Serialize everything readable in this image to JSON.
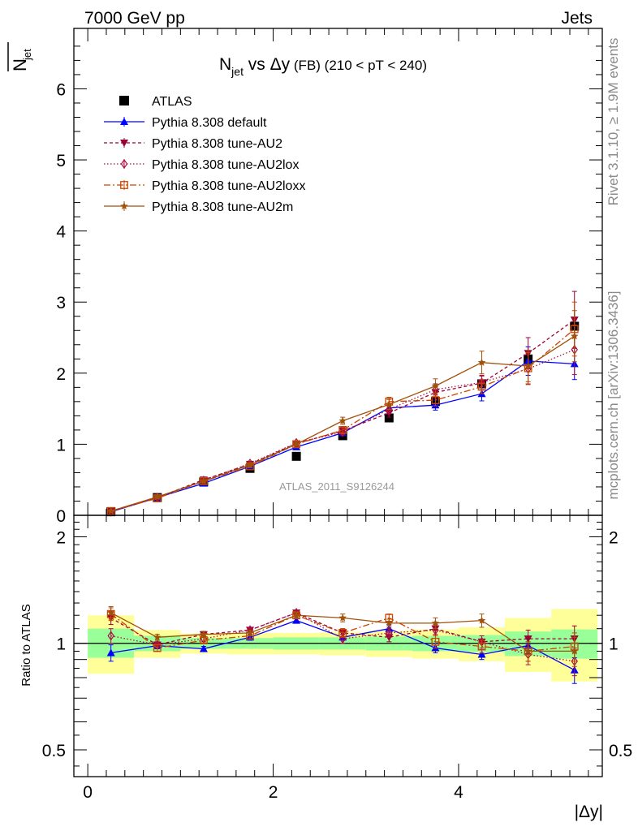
{
  "header": {
    "left": "7000 GeV pp",
    "right": "Jets"
  },
  "side_text": {
    "rivet": "Rivet 3.1.10, ≥ 1.9M events",
    "mcplots": "mcplots.cern.ch [arXiv:1306.3436]"
  },
  "chart_data": [
    {
      "type": "scatter",
      "title": {
        "n": "N",
        "sub": "jet",
        "vs": " vs ",
        "dy": "Δy",
        "fb": " (FB) ",
        "range": "(210 < pT < 240)"
      },
      "ylabel": {
        "n": "N",
        "sub": "jet"
      },
      "watermark": "ATLAS_2011_S9126244",
      "xlim": [
        -0.15,
        5.55
      ],
      "ylim": [
        0,
        6.85
      ],
      "yticks": [
        0,
        1,
        2,
        3,
        4,
        5,
        6
      ],
      "x": [
        0.25,
        0.75,
        1.25,
        1.75,
        2.25,
        2.75,
        3.25,
        3.75,
        4.25,
        4.75,
        5.25
      ],
      "series": [
        {
          "name": "ATLAS",
          "color": "#000000",
          "marker": "square",
          "dash": "",
          "line": false,
          "values": [
            0.05,
            0.25,
            0.47,
            0.66,
            0.83,
            1.12,
            1.37,
            1.6,
            1.85,
            2.2,
            2.66
          ],
          "errors": [
            0.005,
            0.02,
            0.03,
            0.03,
            0.04,
            0.05,
            0.06,
            0.08,
            0.1,
            0.1,
            0.2
          ]
        },
        {
          "name": "Pythia 8.308 default",
          "color": "#0000ff",
          "marker": "triangle-up",
          "dash": "",
          "line": true,
          "values": [
            0.05,
            0.25,
            0.45,
            0.69,
            0.96,
            1.16,
            1.51,
            1.55,
            1.71,
            2.17,
            2.13
          ],
          "errors": [
            0.005,
            0.01,
            0.015,
            0.02,
            0.03,
            0.04,
            0.06,
            0.07,
            0.1,
            0.2,
            0.22
          ]
        },
        {
          "name": "Pythia 8.308 tune-AU2",
          "color": "#990033",
          "marker": "triangle-down",
          "dash": "4,3",
          "line": true,
          "values": [
            0.06,
            0.25,
            0.5,
            0.72,
            1.01,
            1.19,
            1.44,
            1.73,
            1.86,
            2.28,
            2.75
          ],
          "errors": [
            0.005,
            0.01,
            0.02,
            0.02,
            0.03,
            0.04,
            0.06,
            0.08,
            0.1,
            0.22,
            0.4
          ]
        },
        {
          "name": "Pythia 8.308 tune-AU2lox",
          "color": "#aa1144",
          "marker": "diamond",
          "dash": "1.5,2.5",
          "line": true,
          "values": [
            0.05,
            0.25,
            0.49,
            0.73,
            1.02,
            1.17,
            1.49,
            1.77,
            1.87,
            2.06,
            2.33
          ],
          "errors": [
            0.005,
            0.01,
            0.02,
            0.02,
            0.03,
            0.04,
            0.06,
            0.08,
            0.1,
            0.22,
            0.35
          ]
        },
        {
          "name": "Pythia 8.308 tune-AU2loxx",
          "color": "#cc4400",
          "marker": "square-open",
          "dash": "8,3,2,3",
          "line": true,
          "values": [
            0.06,
            0.24,
            0.48,
            0.69,
            1.0,
            1.2,
            1.6,
            1.62,
            1.81,
            2.07,
            2.62
          ],
          "errors": [
            0.005,
            0.01,
            0.02,
            0.02,
            0.03,
            0.04,
            0.06,
            0.08,
            0.1,
            0.22,
            0.38
          ]
        },
        {
          "name": "Pythia 8.308 tune-AU2m",
          "color": "#a0520a",
          "marker": "star",
          "dash": "",
          "line": true,
          "values": [
            0.06,
            0.26,
            0.48,
            0.71,
            1.0,
            1.33,
            1.56,
            1.82,
            2.15,
            2.1,
            2.52
          ],
          "errors": [
            0.005,
            0.01,
            0.02,
            0.02,
            0.03,
            0.05,
            0.07,
            0.1,
            0.16,
            0.22,
            0.36
          ]
        }
      ]
    },
    {
      "type": "scatter",
      "ylabel": "Ratio to ATLAS",
      "xlabel": "|Δy|",
      "xlim": [
        -0.15,
        5.55
      ],
      "ylim": [
        0.42,
        2.3
      ],
      "log_y": true,
      "yticks": [
        0.5,
        1,
        2
      ],
      "xticks": [
        0,
        2,
        4
      ],
      "x": [
        0.25,
        0.75,
        1.25,
        1.75,
        2.25,
        2.75,
        3.25,
        3.75,
        4.25,
        4.75,
        5.25
      ],
      "bands": {
        "inner_color": "#99ff99",
        "outer_color": "#ffff99",
        "inner": [
          [
            0.91,
            1.1
          ],
          [
            0.95,
            1.05
          ],
          [
            0.965,
            1.035
          ],
          [
            0.965,
            1.035
          ],
          [
            0.96,
            1.04
          ],
          [
            0.96,
            1.04
          ],
          [
            0.955,
            1.045
          ],
          [
            0.95,
            1.05
          ],
          [
            0.945,
            1.055
          ],
          [
            0.92,
            1.08
          ],
          [
            0.905,
            1.095
          ]
        ],
        "outer": [
          [
            0.82,
            1.2
          ],
          [
            0.91,
            1.09
          ],
          [
            0.935,
            1.065
          ],
          [
            0.93,
            1.07
          ],
          [
            0.93,
            1.07
          ],
          [
            0.925,
            1.075
          ],
          [
            0.915,
            1.085
          ],
          [
            0.905,
            1.095
          ],
          [
            0.89,
            1.11
          ],
          [
            0.83,
            1.18
          ],
          [
            0.78,
            1.25
          ]
        ]
      },
      "series": [
        {
          "name": "Pythia 8.308 default",
          "values": [
            0.94,
            0.985,
            0.965,
            1.04,
            1.16,
            1.04,
            1.1,
            0.97,
            0.93,
            0.985,
            0.84
          ],
          "errors": [
            0.05,
            0.02,
            0.015,
            0.02,
            0.02,
            0.02,
            0.03,
            0.03,
            0.03,
            0.05,
            0.07
          ]
        },
        {
          "name": "Pythia 8.308 tune-AU2",
          "values": [
            1.18,
            0.99,
            1.06,
            1.09,
            1.22,
            1.07,
            1.04,
            1.1,
            1.01,
            1.03,
            1.03
          ],
          "errors": [
            0.05,
            0.02,
            0.02,
            0.02,
            0.02,
            0.03,
            0.03,
            0.04,
            0.04,
            0.06,
            0.09
          ]
        },
        {
          "name": "Pythia 8.308 tune-AU2lox",
          "values": [
            1.05,
            0.99,
            1.03,
            1.09,
            1.22,
            1.03,
            1.07,
            1.09,
            1.01,
            0.93,
            0.89
          ],
          "errors": [
            0.05,
            0.02,
            0.02,
            0.02,
            0.02,
            0.03,
            0.03,
            0.04,
            0.04,
            0.06,
            0.08
          ]
        },
        {
          "name": "Pythia 8.308 tune-AU2loxx",
          "values": [
            1.21,
            0.97,
            1.02,
            1.05,
            1.2,
            1.07,
            1.18,
            1.01,
            0.98,
            0.95,
            0.98
          ],
          "errors": [
            0.05,
            0.02,
            0.02,
            0.02,
            0.02,
            0.03,
            0.03,
            0.04,
            0.04,
            0.06,
            0.09
          ]
        },
        {
          "name": "Pythia 8.308 tune-AU2m",
          "values": [
            1.22,
            1.04,
            1.06,
            1.07,
            1.2,
            1.18,
            1.14,
            1.14,
            1.16,
            0.95,
            0.95
          ],
          "errors": [
            0.05,
            0.02,
            0.02,
            0.02,
            0.02,
            0.03,
            0.03,
            0.04,
            0.05,
            0.06,
            0.09
          ]
        }
      ]
    }
  ]
}
